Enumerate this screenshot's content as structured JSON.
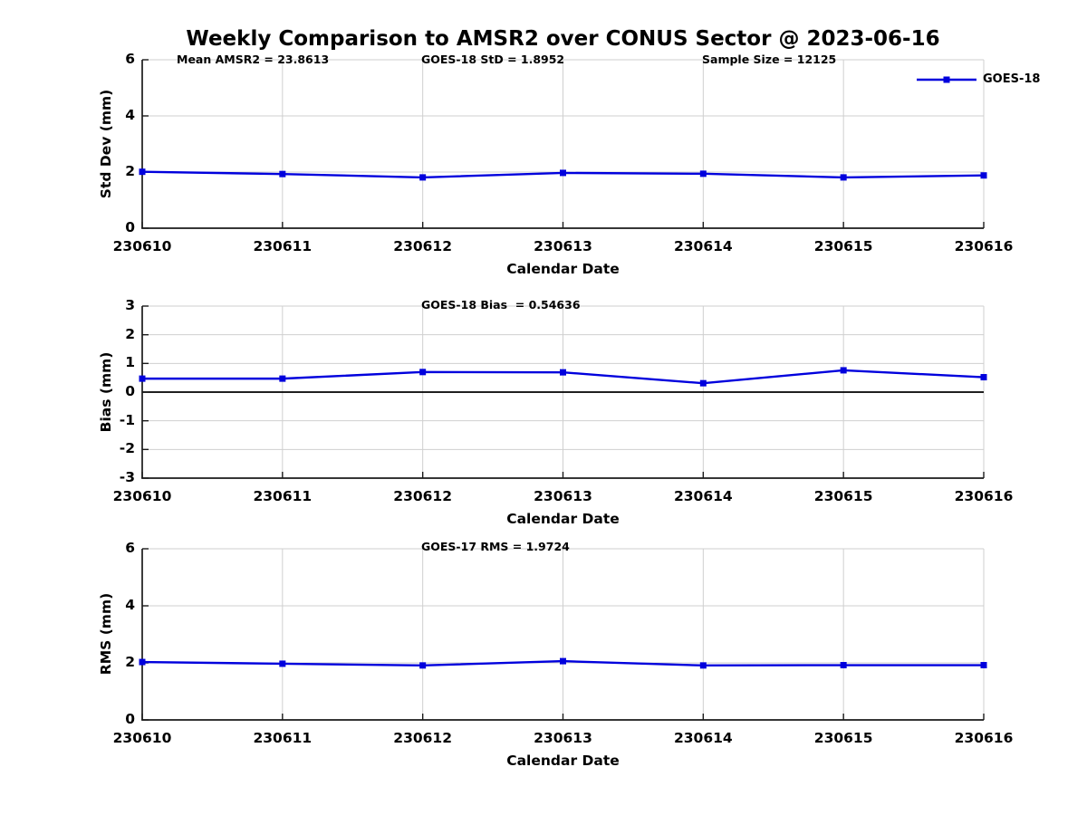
{
  "title": "Weekly Comparison to AMSR2 over CONUS Sector @ 2023-06-16",
  "legend": {
    "label": "GOES-18"
  },
  "colors": {
    "line": "#0000DD",
    "grid": "#CFCFCF",
    "axis": "#1A1A1A",
    "zero_line": "#000000",
    "text": "#000000",
    "background": "#FFFFFF"
  },
  "chart_data": [
    {
      "type": "line",
      "annotations": [
        "Mean AMSR2 = 23.8613",
        "GOES-18 StD = 1.8952",
        "Sample Size = 12125"
      ],
      "xlabel": "Calendar Date",
      "ylabel": "Std Dev (mm)",
      "ylim": [
        0,
        6
      ],
      "yticks": [
        0,
        2,
        4,
        6
      ],
      "categories": [
        "230610",
        "230611",
        "230612",
        "230613",
        "230614",
        "230615",
        "230616"
      ],
      "series": [
        {
          "name": "GOES-18",
          "values": [
            2.01,
            1.93,
            1.81,
            1.97,
            1.94,
            1.81,
            1.88
          ]
        }
      ],
      "grid": true,
      "legend_position": "top-right"
    },
    {
      "type": "line",
      "annotations": [
        "GOES-18 Bias  = 0.54636"
      ],
      "xlabel": "Calendar Date",
      "ylabel": "Bias (mm)",
      "ylim": [
        -3,
        3
      ],
      "yticks": [
        3,
        2,
        1,
        0,
        -1,
        -2,
        -3
      ],
      "categories": [
        "230610",
        "230611",
        "230612",
        "230613",
        "230614",
        "230615",
        "230616"
      ],
      "series": [
        {
          "name": "GOES-18",
          "values": [
            0.47,
            0.47,
            0.7,
            0.69,
            0.31,
            0.76,
            0.52
          ]
        }
      ],
      "zero_line": true,
      "grid": true
    },
    {
      "type": "line",
      "annotations": [
        "GOES-17 RMS = 1.9724"
      ],
      "xlabel": "Calendar Date",
      "ylabel": "RMS (mm)",
      "ylim": [
        0,
        6
      ],
      "yticks": [
        0,
        2,
        4,
        6
      ],
      "categories": [
        "230610",
        "230611",
        "230612",
        "230613",
        "230614",
        "230615",
        "230616"
      ],
      "series": [
        {
          "name": "GOES-18",
          "values": [
            2.03,
            1.97,
            1.91,
            2.06,
            1.91,
            1.92,
            1.92
          ]
        }
      ],
      "grid": true
    }
  ]
}
